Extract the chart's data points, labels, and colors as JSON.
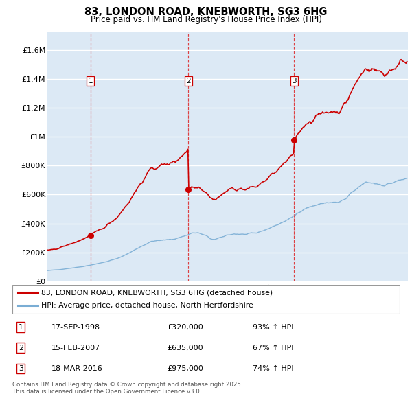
{
  "title": "83, LONDON ROAD, KNEBWORTH, SG3 6HG",
  "subtitle": "Price paid vs. HM Land Registry's House Price Index (HPI)",
  "background_color": "#dce9f5",
  "plot_bg_color": "#dce9f5",
  "grid_color": "#ffffff",
  "red_color": "#cc0000",
  "blue_color": "#7aadd4",
  "transactions": [
    {
      "year": 1998,
      "month": 9,
      "day": 17,
      "price": 320000,
      "label": "1"
    },
    {
      "year": 2007,
      "month": 2,
      "day": 15,
      "price": 635000,
      "label": "2"
    },
    {
      "year": 2016,
      "month": 3,
      "day": 18,
      "price": 975000,
      "label": "3"
    }
  ],
  "legend": [
    {
      "label": "83, LONDON ROAD, KNEBWORTH, SG3 6HG (detached house)",
      "color": "#cc0000"
    },
    {
      "label": "HPI: Average price, detached house, North Hertfordshire",
      "color": "#7aadd4"
    }
  ],
  "table_rows": [
    {
      "num": "1",
      "date": "17-SEP-1998",
      "price": "£320,000",
      "hpi": "93% ↑ HPI"
    },
    {
      "num": "2",
      "date": "15-FEB-2007",
      "price": "£635,000",
      "hpi": "67% ↑ HPI"
    },
    {
      "num": "3",
      "date": "18-MAR-2016",
      "price": "£975,000",
      "hpi": "74% ↑ HPI"
    }
  ],
  "footnote": "Contains HM Land Registry data © Crown copyright and database right 2025.\nThis data is licensed under the Open Government Licence v3.0.",
  "ylim": [
    0,
    1720000
  ],
  "yticks": [
    0,
    200000,
    400000,
    600000,
    800000,
    1000000,
    1200000,
    1400000,
    1600000
  ],
  "ytick_labels": [
    "£0",
    "£200K",
    "£400K",
    "£600K",
    "£800K",
    "£1M",
    "£1.2M",
    "£1.4M",
    "£1.6M"
  ],
  "hpi_control_points": [
    [
      1995,
      1,
      75000
    ],
    [
      1996,
      1,
      82000
    ],
    [
      1997,
      1,
      92000
    ],
    [
      1998,
      1,
      103000
    ],
    [
      1999,
      1,
      118000
    ],
    [
      2000,
      1,
      135000
    ],
    [
      2001,
      1,
      158000
    ],
    [
      2002,
      1,
      195000
    ],
    [
      2003,
      1,
      240000
    ],
    [
      2004,
      1,
      278000
    ],
    [
      2005,
      1,
      285000
    ],
    [
      2006,
      1,
      295000
    ],
    [
      2007,
      1,
      320000
    ],
    [
      2007,
      6,
      335000
    ],
    [
      2008,
      1,
      335000
    ],
    [
      2008,
      9,
      315000
    ],
    [
      2009,
      1,
      295000
    ],
    [
      2009,
      6,
      290000
    ],
    [
      2010,
      1,
      305000
    ],
    [
      2010,
      6,
      320000
    ],
    [
      2011,
      1,
      328000
    ],
    [
      2012,
      1,
      325000
    ],
    [
      2013,
      1,
      335000
    ],
    [
      2014,
      1,
      365000
    ],
    [
      2015,
      1,
      400000
    ],
    [
      2016,
      1,
      440000
    ],
    [
      2016,
      6,
      465000
    ],
    [
      2017,
      1,
      500000
    ],
    [
      2018,
      1,
      525000
    ],
    [
      2019,
      1,
      545000
    ],
    [
      2020,
      1,
      545000
    ],
    [
      2020,
      9,
      570000
    ],
    [
      2021,
      1,
      600000
    ],
    [
      2022,
      1,
      665000
    ],
    [
      2022,
      6,
      685000
    ],
    [
      2023,
      1,
      680000
    ],
    [
      2024,
      1,
      665000
    ],
    [
      2024,
      6,
      675000
    ],
    [
      2025,
      1,
      690000
    ]
  ]
}
